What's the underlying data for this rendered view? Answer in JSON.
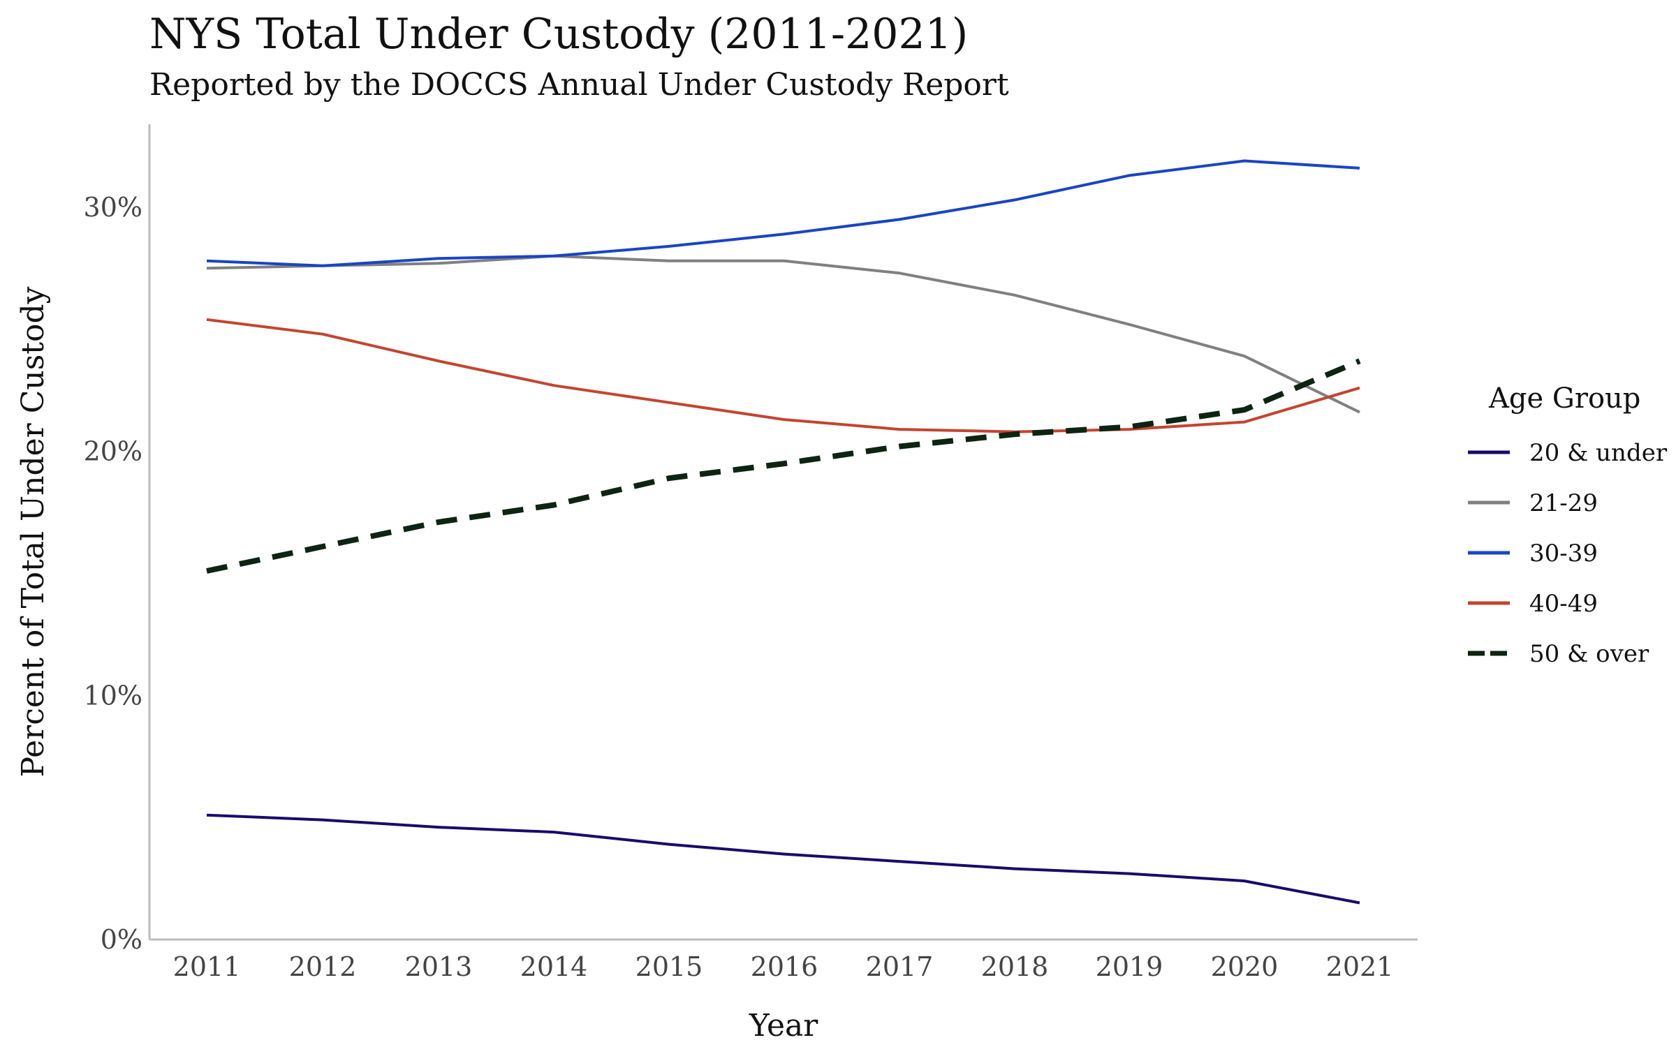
{
  "title": "NYS Total Under Custody (2011-2021)",
  "subtitle": "Reported by the DOCCS Annual Under Custody Report",
  "chart_data": {
    "type": "line",
    "title": "NYS Total Under Custody (2011-2021)",
    "subtitle": "Reported by the DOCCS Annual Under Custody Report",
    "xlabel": "Year",
    "ylabel": "Percent of Total Under Custody",
    "x": [
      2011,
      2012,
      2013,
      2014,
      2015,
      2016,
      2017,
      2018,
      2019,
      2020,
      2021
    ],
    "x_tick_labels": [
      "2011",
      "2012",
      "2013",
      "2014",
      "2015",
      "2016",
      "2017",
      "2018",
      "2019",
      "2020",
      "2021"
    ],
    "y_ticks": [
      0,
      10,
      20,
      30
    ],
    "y_tick_labels": [
      "0%",
      "10%",
      "20%",
      "30%"
    ],
    "ylim": [
      0,
      33.4
    ],
    "grid": false,
    "legend_title": "Age Group",
    "legend_position": "right",
    "series": [
      {
        "name": "20 & under",
        "color": "#1a0a6b",
        "dashed": false,
        "values": [
          5.1,
          4.9,
          4.6,
          4.4,
          3.9,
          3.5,
          3.2,
          2.9,
          2.7,
          2.4,
          1.5
        ]
      },
      {
        "name": "21-29",
        "color": "#808080",
        "dashed": false,
        "values": [
          27.5,
          27.6,
          27.7,
          28.0,
          27.8,
          27.8,
          27.3,
          26.4,
          25.2,
          23.9,
          21.6
        ]
      },
      {
        "name": "30-39",
        "color": "#1a44c4",
        "dashed": false,
        "values": [
          27.8,
          27.6,
          27.9,
          28.0,
          28.4,
          28.9,
          29.5,
          30.3,
          31.3,
          31.9,
          31.6
        ]
      },
      {
        "name": "40-49",
        "color": "#c44430",
        "dashed": false,
        "values": [
          25.4,
          24.8,
          23.7,
          22.7,
          22.0,
          21.3,
          20.9,
          20.8,
          20.9,
          21.2,
          22.6
        ]
      },
      {
        "name": "50 & over",
        "color": "#0e2412",
        "dashed": true,
        "values": [
          15.1,
          16.1,
          17.1,
          17.8,
          18.9,
          19.5,
          20.2,
          20.7,
          21.0,
          21.7,
          23.7
        ]
      }
    ]
  }
}
